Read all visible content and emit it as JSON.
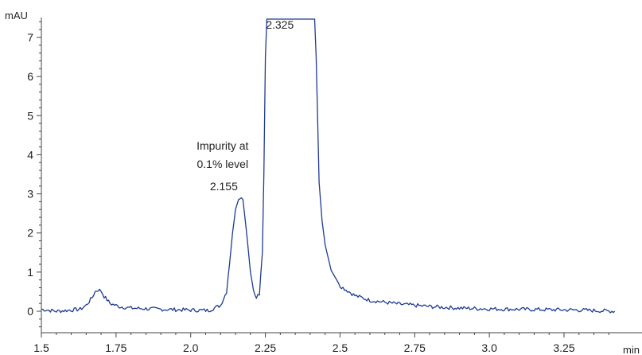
{
  "chart_data": {
    "type": "line",
    "title": "",
    "xlabel": "min",
    "ylabel": "mAU",
    "xlim": [
      1.5,
      3.42
    ],
    "ylim": [
      -0.6,
      7.5
    ],
    "x_ticks": [
      1.5,
      1.75,
      2.0,
      2.25,
      2.5,
      2.75,
      3.0,
      3.25
    ],
    "x_tick_labels": [
      "1.5",
      "1.75",
      "2.0",
      "2.25",
      "2.5",
      "2.75",
      "3.0",
      "3.25"
    ],
    "y_ticks": [
      0,
      1,
      2,
      3,
      4,
      5,
      6,
      7
    ],
    "y_tick_labels": [
      "0",
      "1",
      "2",
      "3",
      "4",
      "5",
      "6",
      "7"
    ],
    "grid": false,
    "line_color": "#1f3a93",
    "series": [
      {
        "x": [
          1.5,
          1.55,
          1.6,
          1.63,
          1.65,
          1.67,
          1.68,
          1.69,
          1.7,
          1.71,
          1.73,
          1.76,
          1.8,
          1.9,
          2.0,
          2.06,
          2.1,
          2.12,
          2.13,
          2.14,
          2.15,
          2.16,
          2.17,
          2.175,
          2.18,
          2.19,
          2.2,
          2.21,
          2.22,
          2.23,
          2.24,
          2.245,
          2.25,
          2.255,
          2.26,
          2.29,
          2.325,
          2.36,
          2.39,
          2.41,
          2.415,
          2.42,
          2.43,
          2.44,
          2.45,
          2.47,
          2.5,
          2.55,
          2.6,
          2.7,
          2.8,
          2.9,
          3.0,
          3.1,
          3.2,
          3.3,
          3.42
        ],
        "y": [
          0.05,
          0.0,
          0.03,
          0.05,
          0.15,
          0.35,
          0.5,
          0.55,
          0.52,
          0.38,
          0.2,
          0.12,
          0.08,
          0.05,
          0.03,
          0.02,
          0.15,
          0.5,
          1.2,
          2.0,
          2.6,
          2.85,
          2.9,
          2.85,
          2.5,
          1.8,
          1.0,
          0.55,
          0.35,
          0.45,
          1.5,
          3.5,
          6.5,
          7.5,
          7.5,
          7.5,
          7.5,
          7.5,
          7.5,
          7.5,
          7.5,
          6.5,
          3.3,
          2.3,
          1.7,
          1.05,
          0.65,
          0.4,
          0.28,
          0.18,
          0.12,
          0.08,
          0.06,
          0.05,
          0.04,
          0.03,
          0.0
        ]
      }
    ],
    "annotations": [
      {
        "lines": [
          "Impurity at",
          "0.1% level"
        ],
        "x": 2.16,
        "y": 4.0
      },
      {
        "text": "2.155",
        "x": 2.155,
        "y": 3.1
      },
      {
        "text": "2.325",
        "x": 2.325,
        "y": 7.25
      }
    ]
  }
}
